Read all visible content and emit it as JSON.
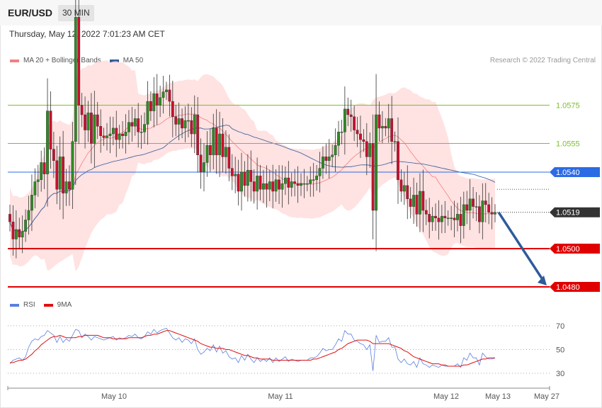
{
  "header": {
    "pair": "EUR/USD",
    "timeframe": "30 MIN"
  },
  "timestamp": "Thursday, May 12, 2022 7:01:23 AM CET",
  "copyright": "Research © 2022 Trading Central",
  "legend_main": [
    {
      "label": "MA 20 + Bollinger Bands",
      "color": "#f28080"
    },
    {
      "label": "MA 50",
      "color": "#2e5b9a"
    }
  ],
  "legend_rsi": [
    {
      "label": "RSI",
      "color": "#5b7fde"
    },
    {
      "label": "9MA",
      "color": "#e01010"
    }
  ],
  "chart_data": [
    {
      "type": "candlestick",
      "series": [
        {
          "name": "MA 20 + Bollinger Bands"
        },
        {
          "name": "MA 50"
        }
      ],
      "ylim": [
        1.0474,
        1.063
      ],
      "levels": [
        {
          "value": 1.0575,
          "label": "1.0575",
          "kind": "resistance",
          "color": "#7cbf2a"
        },
        {
          "value": 1.0555,
          "label": "1.0555",
          "kind": "resistance",
          "color": "#7cbf2a"
        },
        {
          "value": 1.054,
          "label": "1.0540",
          "kind": "pivot",
          "color": "#2d6be4"
        },
        {
          "value": 1.0519,
          "label": "1.0519",
          "kind": "last",
          "color": "#333333"
        },
        {
          "value": 1.05,
          "label": "1.0500",
          "kind": "support",
          "color": "#e00000"
        },
        {
          "value": 1.048,
          "label": "1.0480",
          "kind": "support",
          "color": "#e00000"
        }
      ],
      "last_price": 1.0519,
      "projection": {
        "from": 1.0519,
        "to": 1.048
      },
      "x_tick_labels": [
        "May 10",
        "May 11",
        "May 12",
        "May 13",
        "May 27"
      ],
      "close": [
        1.0514,
        1.0505,
        1.051,
        1.0506,
        1.0509,
        1.0515,
        1.052,
        1.0528,
        1.0535,
        1.0536,
        1.0545,
        1.0539,
        1.0572,
        1.0552,
        1.0546,
        1.0531,
        1.0548,
        1.0529,
        1.0535,
        1.0531,
        1.0556,
        1.0621,
        1.0575,
        1.057,
        1.0562,
        1.0571,
        1.0555,
        1.057,
        1.0564,
        1.0559,
        1.0558,
        1.0559,
        1.056,
        1.0563,
        1.0557,
        1.056,
        1.0559,
        1.0561,
        1.0566,
        1.0564,
        1.0568,
        1.0561,
        1.0561,
        1.0565,
        1.0577,
        1.0572,
        1.0581,
        1.0575,
        1.0579,
        1.0582,
        1.0583,
        1.0577,
        1.0569,
        1.0565,
        1.0568,
        1.0563,
        1.0567,
        1.0567,
        1.056,
        1.057,
        1.0549,
        1.054,
        1.0545,
        1.0554,
        1.0549,
        1.0563,
        1.0549,
        1.056,
        1.0548,
        1.0553,
        1.0542,
        1.0538,
        1.0539,
        1.053,
        1.054,
        1.0533,
        1.0541,
        1.0535,
        1.053,
        1.0538,
        1.0531,
        1.0534,
        1.0531,
        1.0535,
        1.053,
        1.0536,
        1.0531,
        1.0534,
        1.0537,
        1.0532,
        1.0535,
        1.0534,
        1.0533,
        1.0534,
        1.0534,
        1.0534,
        1.0536,
        1.0536,
        1.0538,
        1.0542,
        1.0548,
        1.0546,
        1.0548,
        1.0549,
        1.0554,
        1.0561,
        1.0561,
        1.0573,
        1.057,
        1.0569,
        1.0562,
        1.056,
        1.0557,
        1.0556,
        1.0548,
        1.0555,
        1.052,
        1.057,
        1.0563,
        1.0564,
        1.0563,
        1.0568,
        1.0556,
        1.0556,
        1.0536,
        1.053,
        1.0533,
        1.0526,
        1.0522,
        1.0528,
        1.0518,
        1.053,
        1.052,
        1.0518,
        1.0514,
        1.0517,
        1.0516,
        1.0514,
        1.0517,
        1.0516,
        1.0516,
        1.0516,
        1.0515,
        1.0518,
        1.0512,
        1.0523,
        1.052,
        1.0526,
        1.0522,
        1.0522,
        1.0514,
        1.0525,
        1.0523,
        1.0519,
        1.0518,
        1.0519
      ]
    },
    {
      "type": "line",
      "ylim": [
        20,
        80
      ],
      "y_tick_labels": [
        "70",
        "50",
        "30"
      ],
      "series": [
        {
          "name": "RSI",
          "values": [
            38,
            41,
            42,
            43,
            41,
            44,
            52,
            57,
            59,
            58,
            61,
            62,
            66,
            64,
            62,
            56,
            61,
            56,
            59,
            57,
            62,
            67,
            66,
            60,
            63,
            61,
            58,
            61,
            60,
            59,
            58,
            59,
            60,
            61,
            58,
            60,
            59,
            60,
            62,
            61,
            63,
            60,
            59,
            61,
            65,
            63,
            67,
            64,
            66,
            67,
            68,
            64,
            60,
            58,
            60,
            56,
            59,
            58,
            55,
            59,
            50,
            46,
            48,
            51,
            49,
            54,
            48,
            53,
            47,
            49,
            44,
            42,
            43,
            39,
            45,
            41,
            46,
            42,
            39,
            43,
            40,
            42,
            40,
            43,
            39,
            43,
            40,
            42,
            44,
            40,
            42,
            41,
            40,
            41,
            41,
            41,
            43,
            43,
            44,
            47,
            51,
            49,
            50,
            50,
            54,
            59,
            57,
            66,
            63,
            63,
            58,
            57,
            55,
            54,
            50,
            54,
            32,
            62,
            56,
            57,
            57,
            60,
            52,
            52,
            42,
            39,
            42,
            38,
            37,
            40,
            35,
            43,
            38,
            37,
            35,
            37,
            36,
            35,
            37,
            36,
            36,
            36,
            36,
            38,
            35,
            43,
            41,
            47,
            43,
            43,
            37,
            47,
            44,
            42,
            42,
            43
          ]
        },
        {
          "name": "9MA",
          "values": [
            39,
            39,
            40,
            41,
            41,
            42,
            44,
            46,
            49,
            51,
            54,
            56,
            58,
            60,
            61,
            61,
            62,
            61,
            60,
            60,
            60,
            60,
            61,
            61,
            62,
            62,
            62,
            62,
            62,
            61,
            60,
            60,
            60,
            59,
            59,
            59,
            59,
            59,
            60,
            60,
            60,
            60,
            60,
            61,
            62,
            62,
            63,
            63,
            64,
            65,
            66,
            66,
            65,
            64,
            63,
            62,
            61,
            60,
            59,
            58,
            57,
            55,
            54,
            53,
            52,
            52,
            51,
            51,
            51,
            50,
            50,
            49,
            48,
            47,
            46,
            45,
            45,
            44,
            43,
            43,
            42,
            42,
            42,
            42,
            41,
            41,
            41,
            41,
            41,
            41,
            41,
            41,
            41,
            41,
            41,
            41,
            41,
            42,
            42,
            43,
            44,
            45,
            46,
            47,
            48,
            50,
            51,
            53,
            55,
            56,
            57,
            58,
            58,
            58,
            58,
            57,
            55,
            55,
            55,
            55,
            55,
            55,
            54,
            53,
            52,
            51,
            49,
            48,
            46,
            44,
            43,
            42,
            41,
            40,
            39,
            38,
            38,
            38,
            37,
            37,
            36,
            36,
            36,
            36,
            36,
            37,
            37,
            38,
            39,
            40,
            41,
            42,
            42,
            43,
            43,
            43
          ]
        }
      ]
    }
  ]
}
